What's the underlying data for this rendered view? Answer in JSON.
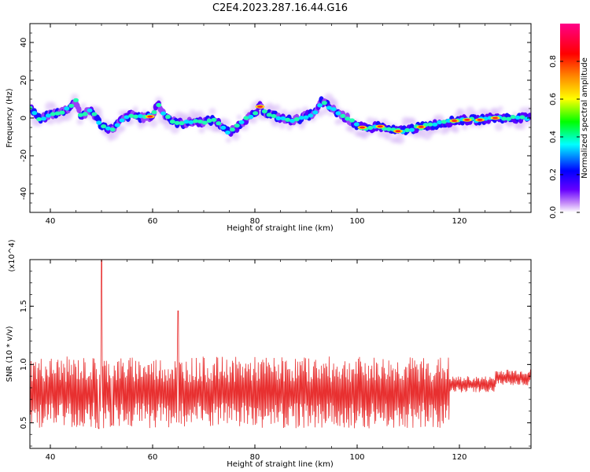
{
  "chart_data": [
    {
      "type": "heatmap",
      "title": "C2E4.2023.287.16.44.G16",
      "xlabel": "Height of straight line (km)",
      "ylabel": "Frequency (Hz)",
      "xlim": [
        36,
        134
      ],
      "ylim": [
        -50,
        50
      ],
      "xticks": [
        "40",
        "60",
        "80",
        "100",
        "120"
      ],
      "yticks": [
        "40",
        "20",
        "0",
        "-20",
        "-40"
      ],
      "colorbar": {
        "label": "Normalized spectral amplitude",
        "range": [
          0,
          1
        ],
        "ticks": [
          "0.0",
          "0.2",
          "0.4",
          "0.6",
          "0.8"
        ]
      },
      "ridge": {
        "x": [
          36,
          38,
          40,
          42,
          44,
          45,
          46,
          48,
          50,
          52,
          54,
          56,
          58,
          60,
          61,
          62,
          64,
          66,
          68,
          70,
          72,
          74,
          75,
          76,
          78,
          80,
          81,
          82,
          84,
          86,
          88,
          90,
          92,
          93,
          94,
          96,
          98,
          100,
          102,
          104,
          106,
          108,
          110,
          112,
          114,
          116,
          118,
          120,
          122,
          124,
          126,
          128,
          130,
          132,
          134
        ],
        "y": [
          6,
          -1,
          2,
          3,
          6,
          9,
          1,
          4,
          -4,
          -6,
          -1,
          2,
          0,
          1,
          8,
          3,
          -2,
          -3,
          -2,
          -2,
          -1,
          -5,
          -8,
          -6,
          -1,
          2,
          6,
          3,
          1,
          -1,
          -1,
          1,
          3,
          9,
          7,
          3,
          0,
          -4,
          -6,
          -4,
          -6,
          -7,
          -6,
          -5,
          -4,
          -3,
          -2,
          -1,
          -1,
          -1,
          0,
          0,
          0,
          0,
          0
        ]
      }
    },
    {
      "type": "line",
      "title": "",
      "xlabel": "Height of straight line (km)",
      "ylabel": "SNR (10 * v/v)",
      "yscale_label": "(x10^4)",
      "xlim": [
        36,
        134
      ],
      "ylim": [
        0.28,
        1.9
      ],
      "xticks": [
        "40",
        "60",
        "80",
        "100",
        "120"
      ],
      "yticks": [
        "0.5",
        "1.0",
        "1.5"
      ],
      "series": [
        {
          "color": "#e83030",
          "x": [
            36,
            38,
            40,
            42,
            44,
            46,
            48,
            49.5,
            50,
            51,
            52,
            54,
            56,
            58,
            60,
            62,
            64,
            65,
            66,
            68,
            70,
            72,
            74,
            76,
            78,
            80,
            82,
            84,
            86,
            88,
            90,
            92,
            94,
            96,
            98,
            100,
            102,
            104,
            106,
            108,
            110,
            112,
            114,
            116,
            118,
            120,
            122,
            124,
            126,
            127,
            128,
            130,
            132,
            134
          ],
          "y": [
            0.62,
            0.85,
            0.58,
            0.95,
            0.52,
            0.92,
            0.55,
            0.45,
            1.92,
            0.95,
            0.48,
            1.05,
            0.52,
            0.88,
            0.5,
            1.1,
            0.58,
            1.46,
            0.6,
            1.12,
            0.55,
            1.0,
            0.62,
            1.05,
            0.58,
            1.08,
            0.6,
            1.05,
            0.62,
            1.12,
            0.62,
            1.05,
            0.62,
            1.02,
            0.65,
            1.0,
            0.68,
            0.95,
            0.7,
            0.93,
            0.72,
            0.92,
            0.74,
            0.9,
            0.76,
            0.88,
            0.78,
            0.86,
            0.8,
            0.86,
            0.93,
            0.88,
            0.9,
            0.88
          ]
        }
      ]
    }
  ]
}
